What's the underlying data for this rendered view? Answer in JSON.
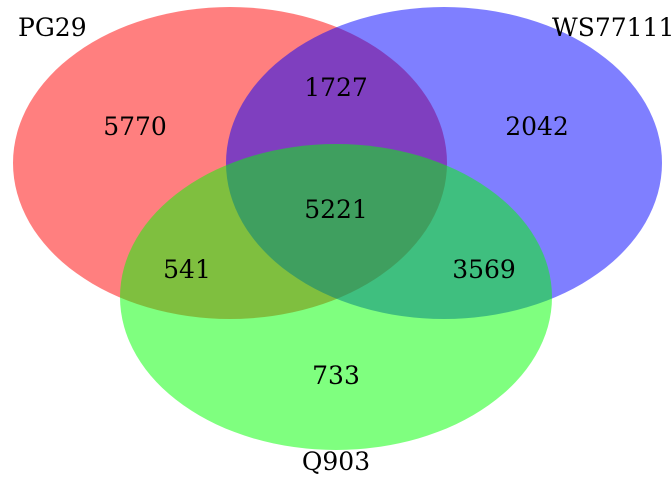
{
  "sets": [
    {
      "key": "a",
      "label": "PG29",
      "color": "#ff0000"
    },
    {
      "key": "b",
      "label": "WS77111",
      "color": "#0000ff"
    },
    {
      "key": "c",
      "label": "Q903",
      "color": "#00ff00"
    }
  ],
  "regions": {
    "a_only": "5770",
    "b_only": "2042",
    "c_only": "733",
    "ab": "1727",
    "ac": "541",
    "bc": "3569",
    "abc": "5221"
  }
}
